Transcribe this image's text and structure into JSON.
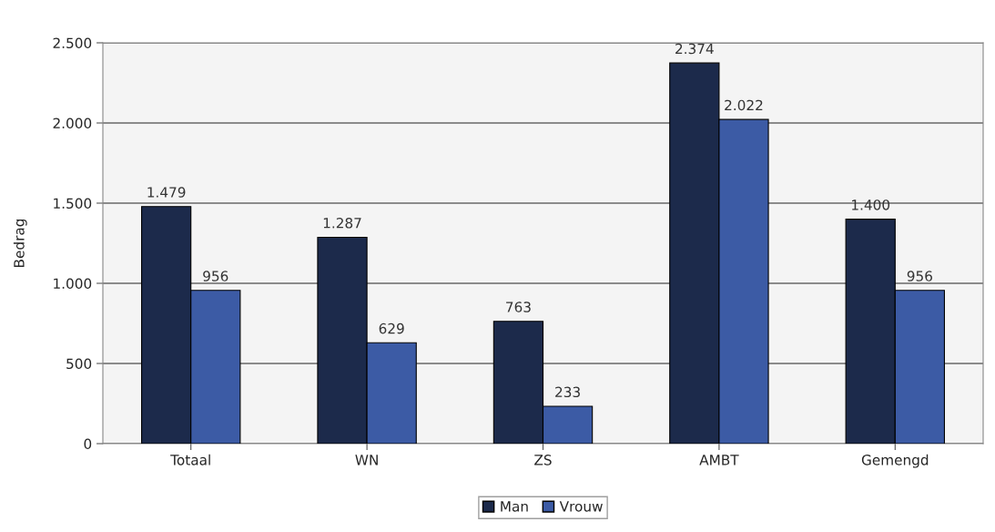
{
  "chart_data": {
    "type": "bar",
    "ylabel": "Bedrag",
    "categories": [
      "Totaal",
      "WN",
      "ZS",
      "AMBT",
      "Gemengd"
    ],
    "series": [
      {
        "name": "Man",
        "color": "#1c2a4b",
        "values": [
          1479,
          1287,
          763,
          2374,
          1400
        ],
        "value_labels": [
          "1.479",
          "1.287",
          "763",
          "2.374",
          "1.400"
        ]
      },
      {
        "name": "Vrouw",
        "color": "#3c5ba5",
        "values": [
          956,
          629,
          233,
          2022,
          956
        ],
        "value_labels": [
          "956",
          "629",
          "233",
          "2.022",
          "956"
        ]
      }
    ],
    "ylim": [
      0,
      2500
    ],
    "yticks": [
      0,
      500,
      {
        "value": 1000,
        "label": "1.000"
      },
      {
        "value": 1500,
        "label": "1.500"
      },
      {
        "value": 2000,
        "label": "2.000"
      },
      {
        "value": 2500,
        "label": "2.500"
      }
    ],
    "grid": "y",
    "legend": "bottom"
  }
}
